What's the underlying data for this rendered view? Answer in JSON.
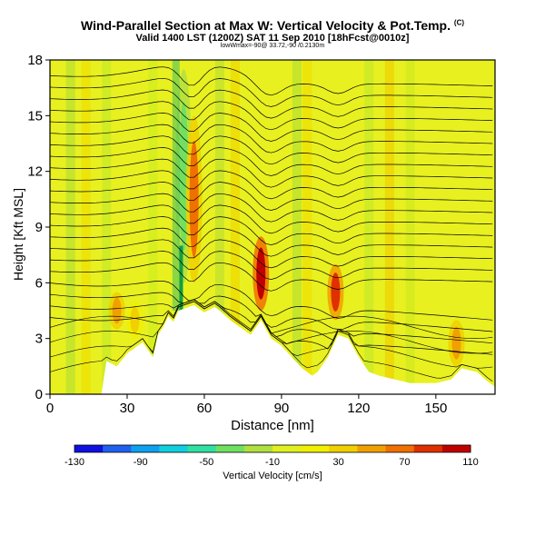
{
  "title": {
    "main": "Wind-Parallel Section at Max W: Vertical Velocity & Pot.Temp.",
    "copyright": "(C)",
    "valid": "Valid 1400 LST (1200Z) SAT 11 Sep 2010 [18hFcst@0010z]",
    "location": "lowWmax=-90@ 33.72,-90 /0.2130m"
  },
  "chart_data": {
    "type": "heatmap",
    "xlabel": "Distance [nm]",
    "ylabel": "Height [Kft MSL]",
    "xlim": [
      0,
      173
    ],
    "ylim": [
      0,
      18
    ],
    "x_ticks": [
      "0",
      "30",
      "60",
      "90",
      "120",
      "150"
    ],
    "y_ticks": [
      "0",
      "3",
      "6",
      "9",
      "12",
      "15",
      "18"
    ],
    "colorbar": {
      "label": "Vertical Velocity [cm/s]",
      "tick_labels": [
        "-130",
        "-90",
        "-50",
        "-10",
        "30",
        "70",
        "110"
      ],
      "range": [
        -130,
        110
      ],
      "colors": [
        "#1010e0",
        "#2060f0",
        "#10a0f0",
        "#10d0e0",
        "#30e0a0",
        "#70e060",
        "#b0e040",
        "#e0f020",
        "#f0f000",
        "#f0d000",
        "#f0a000",
        "#f07000",
        "#e03000",
        "#c00000"
      ]
    },
    "terrain_profile": {
      "x": [
        0,
        20,
        22,
        26,
        30,
        36,
        40,
        42,
        44,
        46,
        48,
        50,
        56,
        60,
        64,
        66,
        70,
        74,
        78,
        82,
        86,
        90,
        94,
        98,
        102,
        104,
        108,
        112,
        116,
        120,
        124,
        128,
        140,
        150,
        156,
        160,
        166,
        170,
        173
      ],
      "height_kft": [
        0,
        0,
        1.8,
        1.5,
        2.2,
        2.8,
        2.0,
        3.2,
        3.6,
        4.2,
        3.9,
        4.5,
        4.8,
        4.4,
        4.7,
        4.5,
        4.0,
        3.6,
        3.2,
        4.0,
        3.0,
        2.6,
        2.0,
        1.4,
        1.0,
        1.2,
        2.0,
        3.2,
        3.0,
        2.0,
        1.2,
        1.0,
        0.6,
        0.6,
        0.8,
        1.4,
        1.2,
        0.7,
        0.4
      ]
    },
    "updraft_cores": [
      {
        "x": 26,
        "y_range": [
          3.5,
          5.5
        ],
        "value": 50
      },
      {
        "x": 33,
        "y_range": [
          3.0,
          5.0
        ],
        "value": 40
      },
      {
        "x": 52,
        "y_range": [
          6.0,
          17.5
        ],
        "value": -30
      },
      {
        "x": 56,
        "y_range": [
          6.0,
          15.0
        ],
        "value": 60
      },
      {
        "x": 82,
        "y_range": [
          4.5,
          8.5
        ],
        "value": 110
      },
      {
        "x": 111,
        "y_range": [
          4.0,
          7.0
        ],
        "value": 90
      },
      {
        "x": 158,
        "y_range": [
          1.5,
          4.0
        ],
        "value": 50
      }
    ],
    "theta_contours_label": "Pot.Temp."
  }
}
